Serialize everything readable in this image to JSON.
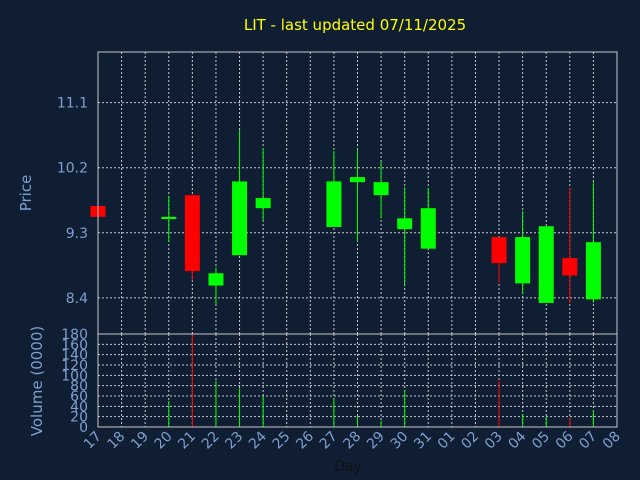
{
  "chart_data": {
    "type": "candlestick",
    "title": "LIT - last updated 07/11/2025",
    "ylabel": "Price",
    "volume_ylabel": "Volume (0000)",
    "xlabel": "Day",
    "colors": {
      "background": "#0f1e33",
      "up": "#00ff00",
      "down": "#ff0000",
      "title": "#ffff00",
      "axis_text": "#7f9fcf",
      "grid": "#c8c8c8"
    },
    "price_ticks": [
      "11.1",
      "10.2",
      "9.3",
      "8.4"
    ],
    "price_ylim": [
      7.9,
      11.8
    ],
    "volume_ticks": [
      "0",
      "20",
      "40",
      "60",
      "80",
      "100",
      "120",
      "140",
      "160",
      "180"
    ],
    "volume_ylim": [
      0,
      180
    ],
    "x_tick_labels": [
      "17",
      "18",
      "19",
      "20",
      "21",
      "22",
      "23",
      "24",
      "25",
      "26",
      "27",
      "28",
      "29",
      "30",
      "31",
      "01",
      "02",
      "03",
      "04",
      "05",
      "06",
      "07",
      "08"
    ],
    "candles": [
      {
        "day": "17",
        "open": 9.67,
        "high": 9.67,
        "low": 9.52,
        "close": 9.52,
        "volume": 0
      },
      {
        "day": "20",
        "open": 9.49,
        "high": 9.81,
        "low": 9.17,
        "close": 9.52,
        "volume": 50
      },
      {
        "day": "21",
        "open": 9.82,
        "high": 9.82,
        "low": 8.64,
        "close": 8.77,
        "volume": 180
      },
      {
        "day": "22",
        "open": 8.57,
        "high": 8.82,
        "low": 8.31,
        "close": 8.74,
        "volume": 90
      },
      {
        "day": "23",
        "open": 8.99,
        "high": 10.72,
        "low": 8.99,
        "close": 10.01,
        "volume": 75
      },
      {
        "day": "24",
        "open": 9.64,
        "high": 10.47,
        "low": 9.46,
        "close": 9.78,
        "volume": 60
      },
      {
        "day": "27",
        "open": 9.38,
        "high": 10.43,
        "low": 9.38,
        "close": 10.01,
        "volume": 55
      },
      {
        "day": "28",
        "open": 10.0,
        "high": 10.45,
        "low": 9.18,
        "close": 10.07,
        "volume": 22
      },
      {
        "day": "29",
        "open": 9.82,
        "high": 10.28,
        "low": 9.5,
        "close": 10.0,
        "volume": 12
      },
      {
        "day": "30",
        "open": 9.35,
        "high": 9.93,
        "low": 8.58,
        "close": 9.5,
        "volume": 72
      },
      {
        "day": "31",
        "open": 9.08,
        "high": 9.92,
        "low": 9.08,
        "close": 9.64,
        "volume": 0
      },
      {
        "day": "03",
        "open": 9.24,
        "high": 9.24,
        "low": 8.6,
        "close": 8.88,
        "volume": 90
      },
      {
        "day": "04",
        "open": 8.6,
        "high": 9.6,
        "low": 8.45,
        "close": 9.24,
        "volume": 25
      },
      {
        "day": "05",
        "open": 8.33,
        "high": 9.39,
        "low": 8.33,
        "close": 9.39,
        "volume": 20
      },
      {
        "day": "06",
        "open": 8.95,
        "high": 9.92,
        "low": 8.33,
        "close": 8.71,
        "volume": 18
      },
      {
        "day": "07",
        "open": 8.38,
        "high": 10.0,
        "low": 8.33,
        "close": 9.17,
        "volume": 33
      }
    ]
  }
}
